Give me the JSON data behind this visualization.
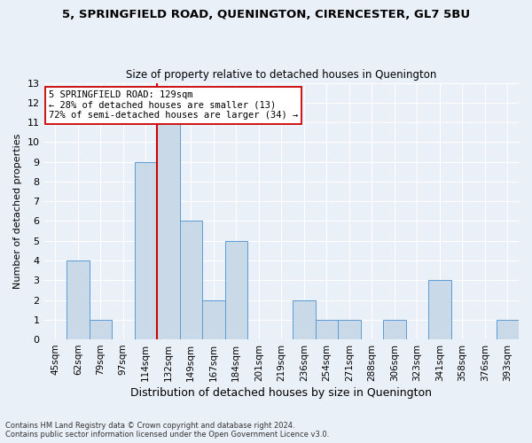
{
  "title1": "5, SPRINGFIELD ROAD, QUENINGTON, CIRENCESTER, GL7 5BU",
  "title2": "Size of property relative to detached houses in Quenington",
  "xlabel": "Distribution of detached houses by size in Quenington",
  "ylabel": "Number of detached properties",
  "categories": [
    "45sqm",
    "62sqm",
    "79sqm",
    "97sqm",
    "114sqm",
    "132sqm",
    "149sqm",
    "167sqm",
    "184sqm",
    "201sqm",
    "219sqm",
    "236sqm",
    "254sqm",
    "271sqm",
    "288sqm",
    "306sqm",
    "323sqm",
    "341sqm",
    "358sqm",
    "376sqm",
    "393sqm"
  ],
  "values": [
    0,
    4,
    1,
    0,
    9,
    11,
    6,
    2,
    5,
    0,
    0,
    2,
    1,
    1,
    0,
    1,
    0,
    3,
    0,
    0,
    1
  ],
  "bar_color": "#c9d9e8",
  "bar_edge_color": "#5b9bd5",
  "vline_color": "#cc0000",
  "annotation_line1": "5 SPRINGFIELD ROAD: 129sqm",
  "annotation_line2": "← 28% of detached houses are smaller (13)",
  "annotation_line3": "72% of semi-detached houses are larger (34) →",
  "annotation_box_color": "white",
  "annotation_box_edge": "#cc0000",
  "ylim": [
    0,
    13
  ],
  "yticks": [
    0,
    1,
    2,
    3,
    4,
    5,
    6,
    7,
    8,
    9,
    10,
    11,
    12,
    13
  ],
  "footnote1": "Contains HM Land Registry data © Crown copyright and database right 2024.",
  "footnote2": "Contains public sector information licensed under the Open Government Licence v3.0.",
  "bg_color": "#eaf0f8",
  "plot_bg_color": "#eaf0f8",
  "grid_color": "white",
  "title1_fontsize": 9.5,
  "title2_fontsize": 8.5,
  "ylabel_fontsize": 8,
  "xlabel_fontsize": 9,
  "tick_fontsize": 8,
  "xtick_fontsize": 7.5
}
